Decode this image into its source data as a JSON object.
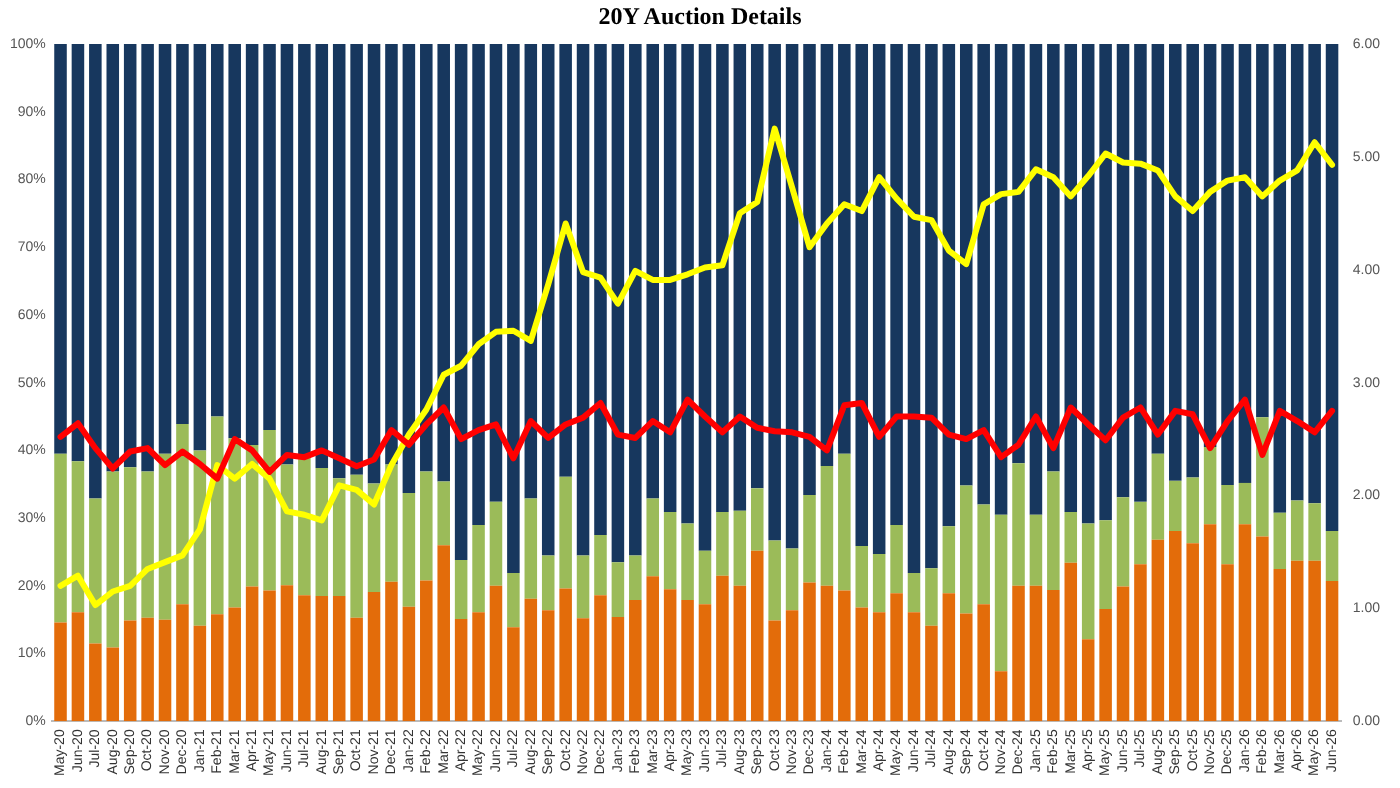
{
  "chart_data": {
    "type": "bar",
    "title": "20Y Auction Details",
    "stacked": true,
    "categories": [
      "May-20",
      "Jun-20",
      "Jul-20",
      "Aug-20",
      "Sep-20",
      "Oct-20",
      "Nov-20",
      "Dec-20",
      "Jan-21",
      "Feb-21",
      "Mar-21",
      "Apr-21",
      "May-21",
      "Jun-21",
      "Jul-21",
      "Aug-21",
      "Sep-21",
      "Oct-21",
      "Nov-21",
      "Dec-21",
      "Jan-22",
      "Feb-22",
      "Mar-22",
      "Apr-22",
      "May-22",
      "Jun-22",
      "Jul-22",
      "Aug-22",
      "Sep-22",
      "Oct-22",
      "Nov-22",
      "Dec-22",
      "Jan-23",
      "Feb-23",
      "Mar-23",
      "Apr-23",
      "May-23",
      "Jun-23",
      "Jul-23",
      "Aug-23",
      "Sep-23",
      "Oct-23",
      "Nov-23",
      "Dec-23",
      "Jan-24",
      "Feb-24",
      "Mar-24",
      "Apr-24",
      "May-24",
      "Jun-24",
      "Jul-24",
      "Aug-24",
      "Sep-24",
      "Oct-24",
      "Nov-24",
      "Dec-24",
      "Jan-25",
      "Feb-25",
      "Mar-25",
      "Apr-25",
      "May-25",
      "Jun-25",
      "Jul-25",
      "Aug-25",
      "Sep-25",
      "Oct-25",
      "Nov-25",
      "Dec-25",
      "Jan-26",
      "Feb-26",
      "Mar-26",
      "Apr-26",
      "May-26",
      "Jun-26"
    ],
    "series": [
      {
        "color": "#e36c0a",
        "values": [
          14.6,
          16.1,
          11.5,
          10.9,
          14.9,
          15.3,
          15.0,
          17.3,
          14.1,
          15.8,
          16.8,
          19.9,
          19.3,
          20.1,
          18.6,
          18.5,
          18.5,
          15.3,
          19.1,
          20.6,
          16.9,
          20.8,
          26.0,
          15.1,
          16.1,
          20.0,
          13.9,
          18.1,
          16.4,
          19.6,
          15.2,
          18.6,
          15.4,
          17.9,
          21.4,
          19.5,
          17.9,
          17.3,
          21.5,
          20.0,
          25.2,
          14.9,
          16.4,
          20.5,
          20.0,
          19.3,
          16.8,
          16.1,
          18.9,
          16.1,
          14.1,
          18.9,
          15.9,
          17.3,
          7.4,
          20.0,
          20.0,
          19.4,
          23.4,
          12.1,
          16.6,
          19.9,
          23.2,
          26.8,
          28.1,
          26.3,
          29.1,
          23.2,
          29.1,
          27.3,
          22.5,
          23.7,
          23.7,
          20.7
        ]
      },
      {
        "color": "#9bbb59",
        "values": [
          24.9,
          22.3,
          21.4,
          26.0,
          22.6,
          21.6,
          24.5,
          26.6,
          25.9,
          29.2,
          25.0,
          20.9,
          23.7,
          17.8,
          20.3,
          18.9,
          17.4,
          21.1,
          16.0,
          17.3,
          16.8,
          16.1,
          9.4,
          8.7,
          12.9,
          12.4,
          8.0,
          14.8,
          8.1,
          16.5,
          9.3,
          8.9,
          8.1,
          6.6,
          11.5,
          11.4,
          11.3,
          7.9,
          9.4,
          11.1,
          9.2,
          11.8,
          9.1,
          12.9,
          17.7,
          20.2,
          9.1,
          8.6,
          10.1,
          5.8,
          8.5,
          9.9,
          18.9,
          14.7,
          23.1,
          18.1,
          10.5,
          17.5,
          7.5,
          17.1,
          13.1,
          13.2,
          9.2,
          12.7,
          7.4,
          9.7,
          11.4,
          11.7,
          6.1,
          17.6,
          8.3,
          8.9,
          8.5,
          7.4
        ]
      },
      {
        "color": "#17375e",
        "values": [
          60.5,
          61.6,
          67.1,
          63.1,
          62.5,
          63.1,
          60.5,
          56.1,
          60.0,
          55.0,
          58.2,
          59.2,
          57.0,
          62.1,
          61.1,
          62.6,
          64.1,
          63.6,
          64.9,
          62.1,
          66.3,
          63.1,
          64.6,
          76.2,
          71.0,
          67.6,
          78.1,
          67.1,
          75.5,
          63.9,
          75.5,
          72.5,
          76.5,
          75.5,
          67.1,
          69.1,
          70.8,
          74.8,
          69.1,
          68.9,
          65.6,
          73.3,
          74.5,
          66.6,
          62.3,
          60.5,
          74.1,
          75.3,
          71.0,
          78.1,
          77.4,
          71.2,
          65.2,
          68.0,
          69.5,
          61.9,
          69.5,
          63.1,
          69.1,
          70.8,
          70.3,
          66.9,
          67.6,
          60.5,
          64.5,
          64.0,
          59.5,
          65.1,
          64.8,
          55.1,
          69.2,
          67.4,
          67.8,
          71.9
        ]
      },
      {
        "type": "line",
        "axis": "y2",
        "color": "#ff0000",
        "values": [
          2.52,
          2.64,
          2.42,
          2.24,
          2.39,
          2.42,
          2.27,
          2.39,
          2.28,
          2.15,
          2.5,
          2.4,
          2.21,
          2.36,
          2.34,
          2.4,
          2.33,
          2.26,
          2.32,
          2.58,
          2.45,
          2.63,
          2.78,
          2.5,
          2.58,
          2.63,
          2.33,
          2.66,
          2.51,
          2.63,
          2.69,
          2.82,
          2.54,
          2.51,
          2.66,
          2.56,
          2.85,
          2.7,
          2.56,
          2.7,
          2.6,
          2.57,
          2.56,
          2.52,
          2.4,
          2.8,
          2.82,
          2.52,
          2.7,
          2.7,
          2.69,
          2.54,
          2.5,
          2.58,
          2.34,
          2.45,
          2.7,
          2.42,
          2.78,
          2.63,
          2.49,
          2.69,
          2.78,
          2.54,
          2.75,
          2.72,
          2.42,
          2.66,
          2.85,
          2.36,
          2.75,
          2.66,
          2.56,
          2.75
        ]
      },
      {
        "type": "line",
        "axis": "y2",
        "color": "#ffff00",
        "values": [
          1.2,
          1.29,
          1.03,
          1.15,
          1.2,
          1.35,
          1.41,
          1.47,
          1.7,
          2.27,
          2.15,
          2.28,
          2.15,
          1.86,
          1.83,
          1.78,
          2.09,
          2.05,
          1.92,
          2.27,
          2.54,
          2.76,
          3.07,
          3.15,
          3.34,
          3.45,
          3.46,
          3.37,
          3.87,
          4.41,
          3.98,
          3.93,
          3.7,
          3.99,
          3.91,
          3.91,
          3.96,
          4.02,
          4.04,
          4.5,
          4.6,
          5.25,
          4.73,
          4.2,
          4.41,
          4.58,
          4.52,
          4.82,
          4.63,
          4.47,
          4.44,
          4.17,
          4.05,
          4.58,
          4.67,
          4.69,
          4.89,
          4.82,
          4.65,
          4.83,
          5.03,
          4.95,
          4.94,
          4.88,
          4.65,
          4.52,
          4.69,
          4.79,
          4.82,
          4.65,
          4.79,
          4.88,
          5.13,
          4.93
        ]
      }
    ],
    "ylim": [
      0,
      100
    ],
    "yticks": [
      {
        "value": 0,
        "label": "0%"
      },
      {
        "value": 10,
        "label": "10%"
      },
      {
        "value": 20,
        "label": "20%"
      },
      {
        "value": 30,
        "label": "30%"
      },
      {
        "value": 40,
        "label": "40%"
      },
      {
        "value": 50,
        "label": "50%"
      },
      {
        "value": 60,
        "label": "60%"
      },
      {
        "value": 70,
        "label": "70%"
      },
      {
        "value": 80,
        "label": "80%"
      },
      {
        "value": 90,
        "label": "90%"
      },
      {
        "value": 100,
        "label": "100%"
      }
    ],
    "y2lim": [
      0,
      6
    ],
    "y2ticks": [
      {
        "value": 0,
        "label": "0.00"
      },
      {
        "value": 1,
        "label": "1.00"
      },
      {
        "value": 2,
        "label": "2.00"
      },
      {
        "value": 3,
        "label": "3.00"
      },
      {
        "value": 4,
        "label": "4.00"
      },
      {
        "value": 5,
        "label": "5.00"
      },
      {
        "value": 6,
        "label": "6.00"
      }
    ],
    "grid": false,
    "legend": false,
    "marker": "none",
    "line_style": "solid"
  }
}
